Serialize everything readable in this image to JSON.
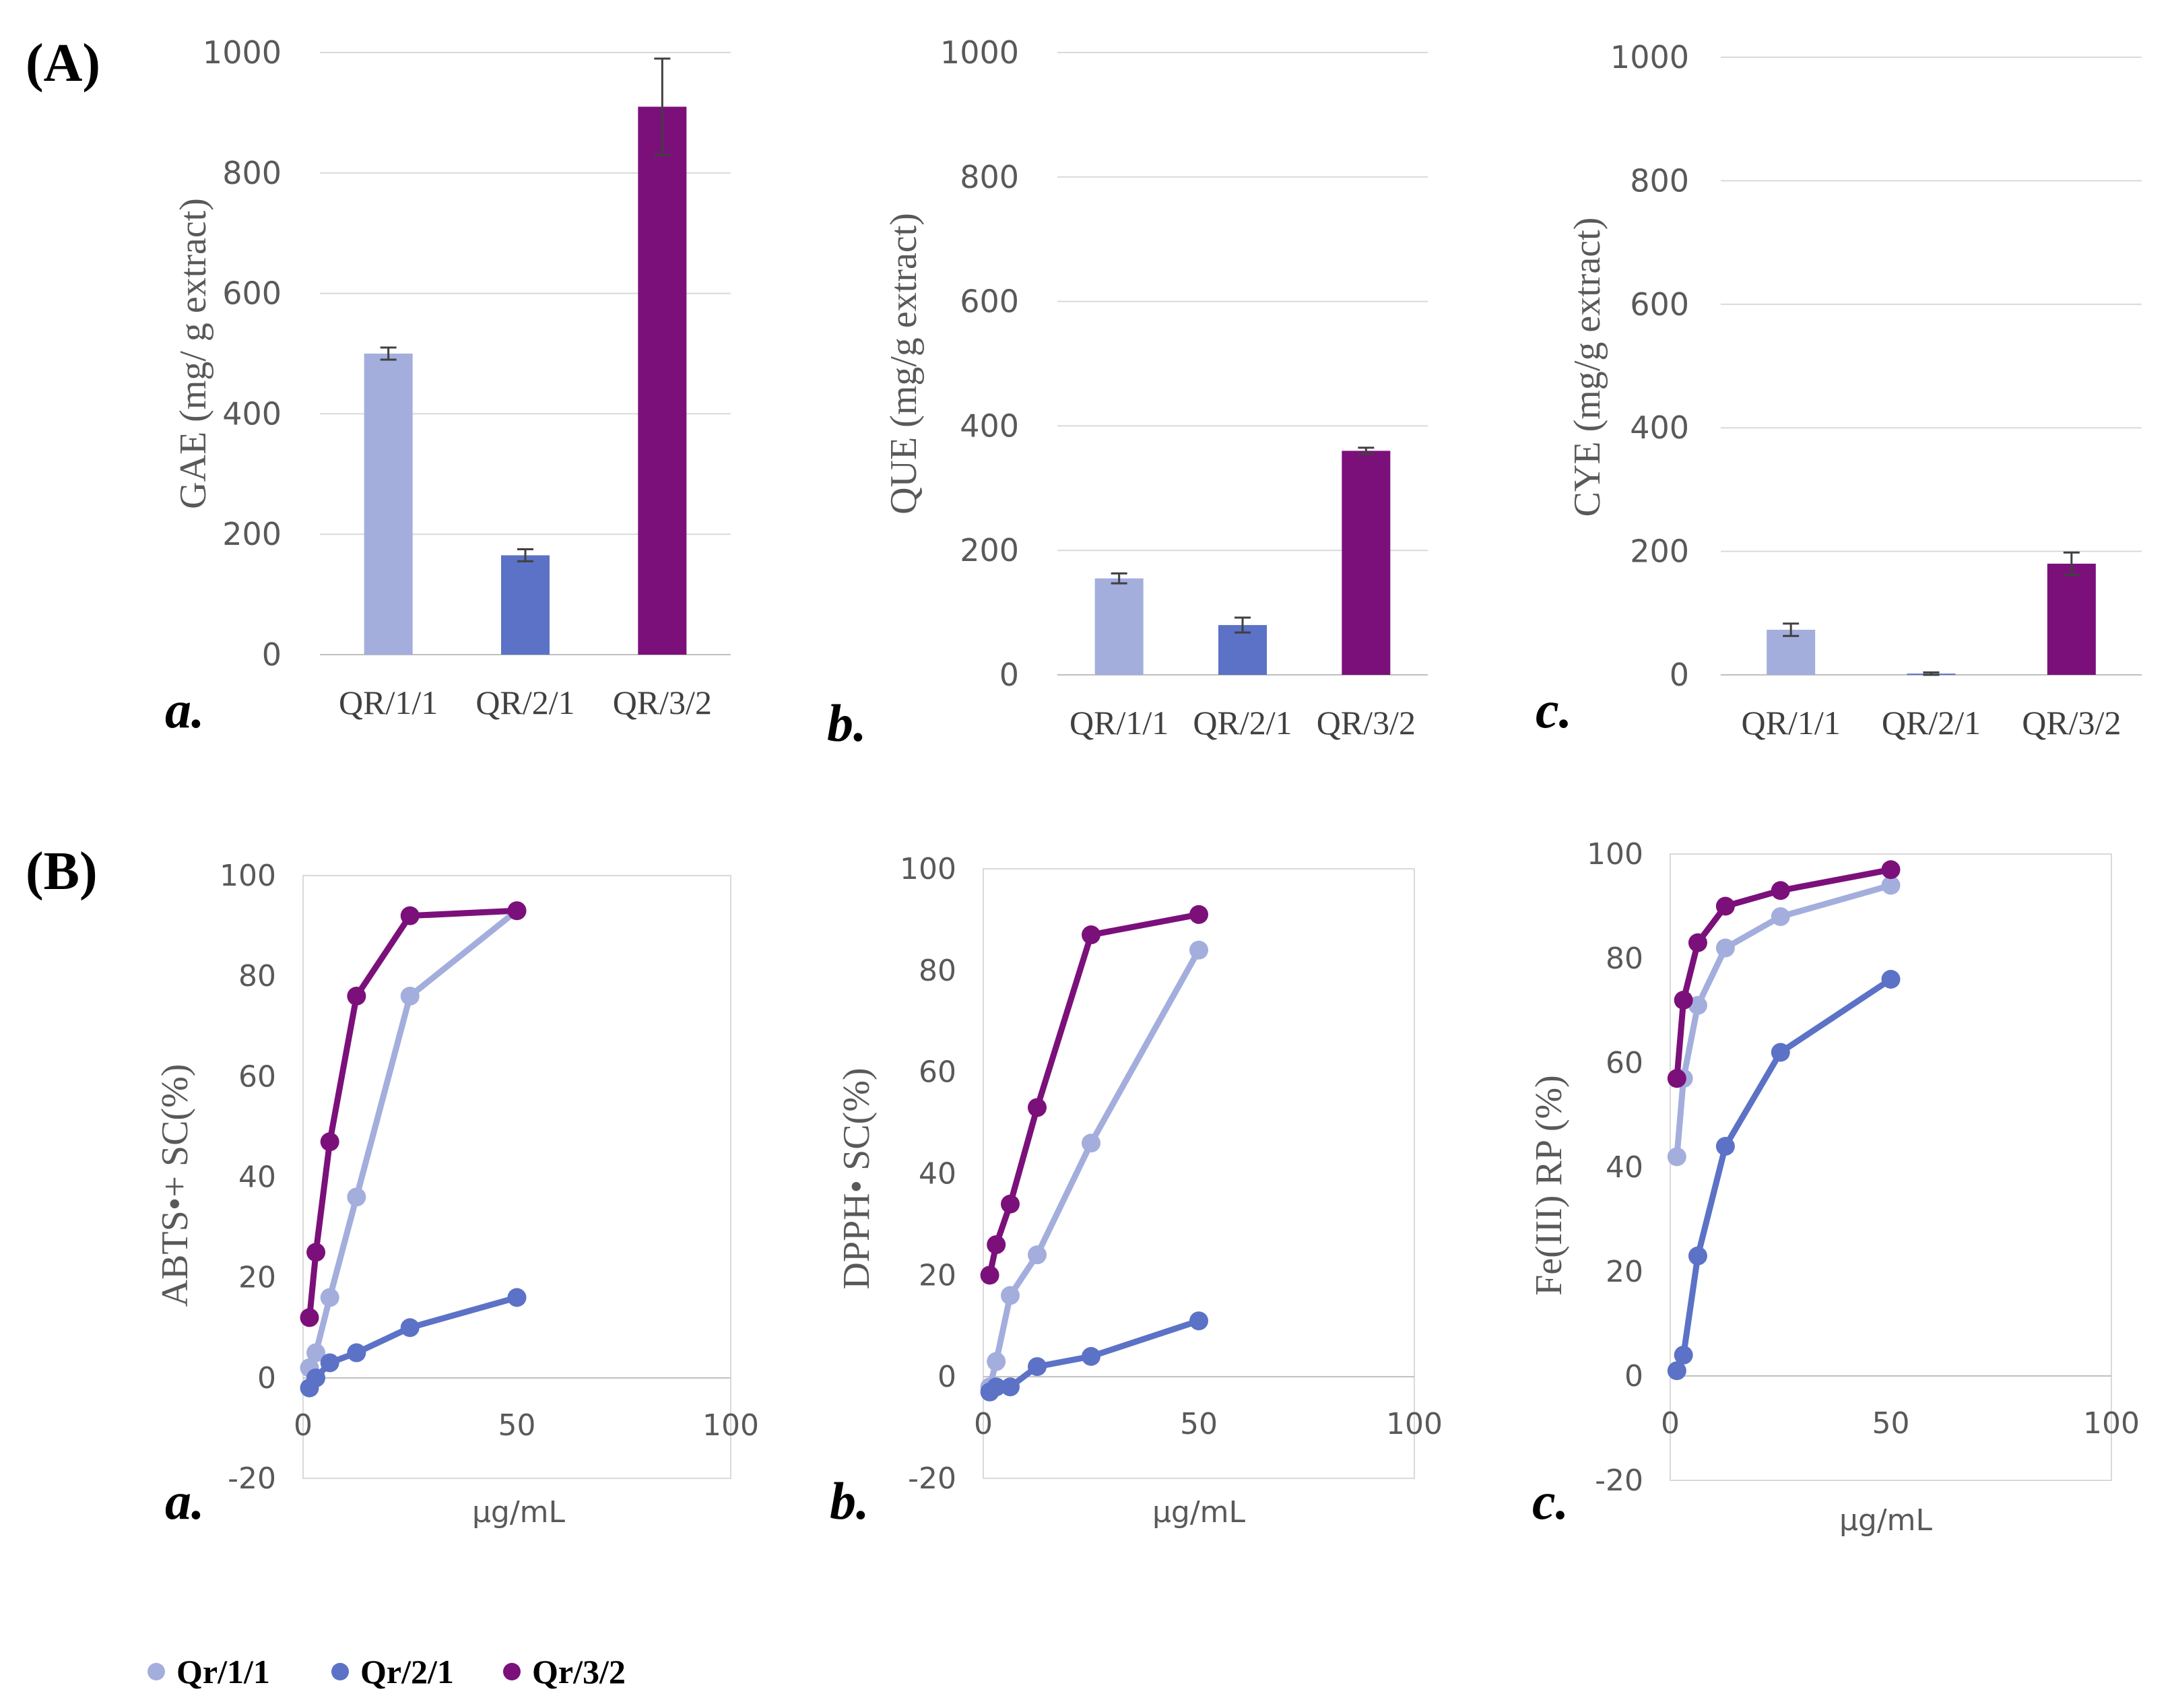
{
  "panel_labels": {
    "A": "(A)",
    "B": "(B)"
  },
  "colors": {
    "QR/1/1": "#a3aedd",
    "QR/2/1": "#5b72c6",
    "QR/3/2": "#7b107b"
  },
  "legend": {
    "items": [
      "Qr/1/1",
      "Qr/2/1",
      "Qr/3/2"
    ]
  },
  "chart_data": [
    {
      "id": "Aa",
      "type": "bar",
      "sublabel": "a.",
      "ylabel": "GAE (mg/ g extract)",
      "ylim": [
        0,
        1000
      ],
      "yticks": [
        0,
        200,
        400,
        600,
        800,
        1000
      ],
      "categories": [
        "QR/1/1",
        "QR/2/1",
        "QR/3/2"
      ],
      "values": [
        500,
        165,
        910
      ],
      "errors": [
        10,
        10,
        80
      ]
    },
    {
      "id": "Ab",
      "type": "bar",
      "sublabel": "b.",
      "ylabel": "QUE (mg/g extract)",
      "ylim": [
        0,
        1000
      ],
      "yticks": [
        0,
        200,
        400,
        600,
        800,
        1000
      ],
      "categories": [
        "QR/1/1",
        "QR/2/1",
        "QR/3/2"
      ],
      "values": [
        155,
        80,
        360
      ],
      "errors": [
        8,
        12,
        5
      ]
    },
    {
      "id": "Ac",
      "type": "bar",
      "sublabel": "c.",
      "ylabel": "CYE (mg/g extract)",
      "ylim": [
        0,
        1000
      ],
      "yticks": [
        0,
        200,
        400,
        600,
        800,
        1000
      ],
      "categories": [
        "QR/1/1",
        "QR/2/1",
        "QR/3/2"
      ],
      "values": [
        73,
        2,
        180
      ],
      "errors": [
        10,
        2,
        18
      ]
    },
    {
      "id": "Ba",
      "type": "line",
      "sublabel": "a.",
      "ylabel": "ABTS•+ SC(%)",
      "xlabel": "µg/mL",
      "xlim": [
        0,
        100
      ],
      "ylim": [
        -20,
        100
      ],
      "xticks": [
        0,
        50,
        100
      ],
      "yticks": [
        -20,
        0,
        20,
        40,
        60,
        80,
        100
      ],
      "series": [
        {
          "name": "QR/1/1",
          "x": [
            1.5,
            3,
            6.25,
            12.5,
            25,
            50
          ],
          "y": [
            2,
            5,
            16,
            36,
            76,
            93
          ]
        },
        {
          "name": "QR/2/1",
          "x": [
            1.5,
            3,
            6.25,
            12.5,
            25,
            50
          ],
          "y": [
            -2,
            0,
            3,
            5,
            10,
            16
          ]
        },
        {
          "name": "QR/3/2",
          "x": [
            1.5,
            3,
            6.25,
            12.5,
            25,
            50
          ],
          "y": [
            12,
            25,
            47,
            76,
            92,
            93
          ]
        }
      ]
    },
    {
      "id": "Bb",
      "type": "line",
      "sublabel": "b.",
      "ylabel": "DPPH• SC(%)",
      "xlabel": "µg/mL",
      "xlim": [
        0,
        100
      ],
      "ylim": [
        -20,
        100
      ],
      "xticks": [
        0,
        50,
        100
      ],
      "yticks": [
        -20,
        0,
        20,
        40,
        60,
        80,
        100
      ],
      "series": [
        {
          "name": "QR/1/1",
          "x": [
            1.5,
            3,
            6.25,
            12.5,
            25,
            50
          ],
          "y": [
            -2,
            3,
            16,
            24,
            46,
            84
          ]
        },
        {
          "name": "QR/2/1",
          "x": [
            1.5,
            3,
            6.25,
            12.5,
            25,
            50
          ],
          "y": [
            -3,
            -2,
            -2,
            2,
            4,
            11
          ]
        },
        {
          "name": "QR/3/2",
          "x": [
            1.5,
            3,
            6.25,
            12.5,
            25,
            50
          ],
          "y": [
            20,
            26,
            34,
            53,
            87,
            91
          ]
        }
      ]
    },
    {
      "id": "Bc",
      "type": "line",
      "sublabel": "c.",
      "ylabel": "Fe(III) RP (%)",
      "xlabel": "µg/mL",
      "xlim": [
        0,
        100
      ],
      "ylim": [
        -20,
        100
      ],
      "xticks": [
        0,
        50,
        100
      ],
      "yticks": [
        -20,
        0,
        20,
        40,
        60,
        80,
        100
      ],
      "series": [
        {
          "name": "QR/1/1",
          "x": [
            1.5,
            3,
            6.25,
            12.5,
            25,
            50
          ],
          "y": [
            42,
            57,
            71,
            82,
            88,
            94
          ]
        },
        {
          "name": "QR/2/1",
          "x": [
            1.5,
            3,
            6.25,
            12.5,
            25,
            50
          ],
          "y": [
            1,
            4,
            23,
            44,
            62,
            76
          ]
        },
        {
          "name": "QR/3/2",
          "x": [
            1.5,
            3,
            6.25,
            12.5,
            25,
            50
          ],
          "y": [
            57,
            72,
            83,
            90,
            93,
            97
          ]
        }
      ]
    }
  ]
}
